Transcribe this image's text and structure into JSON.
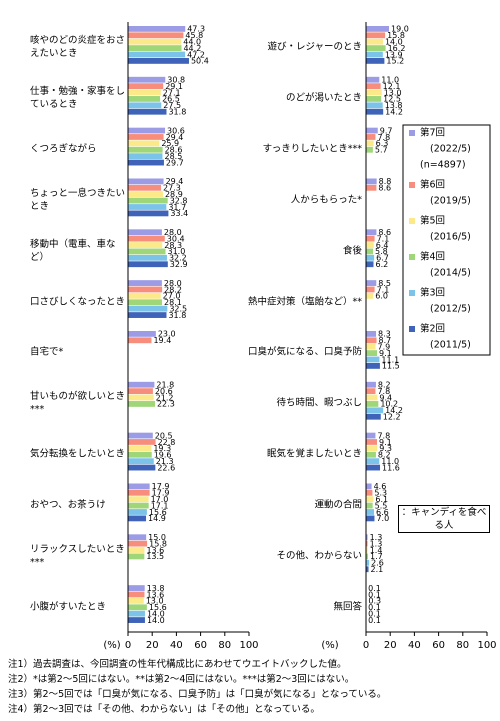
{
  "chart_data": [
    {
      "type": "hbar",
      "x_unit": "(%)",
      "categories": [
        "咳やのどの炎症をおさえたいとき",
        "仕事・勉強・家事をしているとき",
        "くつろぎながら",
        "ちょっと一息つきたいとき",
        "移動中（電車、車など）",
        "口さびしくなったとき",
        "自宅で*",
        "甘いものが欲しいとき***",
        "気分転換をしたいとき",
        "おやつ、お茶うけ",
        "リラックスしたいとき***",
        "小腹がすいたとき"
      ],
      "series": [
        {
          "name": "第7回",
          "color": "#9b9be6",
          "values": [
            47.3,
            30.8,
            30.6,
            29.4,
            28.0,
            28.0,
            23.0,
            21.8,
            20.5,
            17.9,
            15.0,
            13.8
          ],
          "value_labels": [
            "47.3",
            "30.8",
            "30.6",
            "29.4",
            "28.0",
            "28.0",
            "23.0",
            "21.8",
            "20.5",
            "17.9",
            "15.0",
            "13.8"
          ]
        },
        {
          "name": "第6回",
          "color": "#f78d7c",
          "values": [
            45.8,
            29.1,
            29.4,
            27.3,
            30.4,
            28.2,
            19.4,
            20.6,
            22.8,
            17.9,
            15.8,
            13.6
          ],
          "value_labels": [
            "45.8",
            "29.1",
            "29.4",
            "27.3",
            "30.4",
            "28.2",
            "19.4",
            "20.6",
            "22.8",
            "17.9",
            "15.8",
            "13.6"
          ]
        },
        {
          "name": "第5回",
          "color": "#fbe98a",
          "values": [
            44.0,
            27.1,
            25.9,
            28.9,
            28.3,
            27.0,
            null,
            21.2,
            19.3,
            17.0,
            13.6,
            13.0
          ],
          "value_labels": [
            "44.0",
            "27.1",
            "25.9",
            "28.9",
            "28.3",
            "27.0",
            null,
            "21.2",
            "19.3",
            "17.0",
            "13.6",
            "13.0"
          ]
        },
        {
          "name": "第4回",
          "color": "#9fd67a",
          "values": [
            44.2,
            26.5,
            28.6,
            32.8,
            31.0,
            28.1,
            null,
            22.3,
            19.6,
            17.1,
            13.5,
            15.6
          ],
          "value_labels": [
            "44.2",
            "26.5",
            "28.6",
            "32.8",
            "31.0",
            "28.1",
            null,
            "22.3",
            "19.6",
            "17.1",
            "13.5",
            "15.6"
          ]
        },
        {
          "name": "第3回",
          "color": "#7cc3ea",
          "values": [
            47.2,
            27.5,
            28.5,
            31.7,
            32.2,
            32.5,
            null,
            null,
            21.3,
            15.6,
            null,
            14.0
          ],
          "value_labels": [
            "47.2",
            "27.5",
            "28.5",
            "31.7",
            "32.2",
            "32.5",
            null,
            null,
            "21.3",
            "15.6",
            null,
            "14.0"
          ]
        },
        {
          "name": "第2回",
          "color": "#3f63b8",
          "values": [
            50.4,
            31.8,
            29.7,
            33.4,
            32.9,
            31.8,
            null,
            null,
            22.6,
            14.9,
            null,
            14.0
          ],
          "value_labels": [
            "50.4",
            "31.8",
            "29.7",
            "33.4",
            "32.9",
            "31.8",
            null,
            null,
            "22.6",
            "14.9",
            null,
            "14.0"
          ]
        }
      ],
      "xlim": [
        0,
        100
      ],
      "xticks": [
        0,
        20,
        40,
        60,
        80,
        100
      ]
    },
    {
      "type": "hbar",
      "x_unit": "(%)",
      "annotation": "：キャンディを食べる人",
      "legend": "right",
      "categories": [
        "遊び・レジャーのとき",
        "のどが渇いたとき",
        "すっきりしたいとき***",
        "人からもらった*",
        "食後",
        "熱中症対策（塩飴など）**",
        "口臭が気になる、口臭予防",
        "待ち時間、暇つぶし",
        "眠気を覚ましたいとき",
        "運動の合間",
        "その他、わからない",
        "無回答"
      ],
      "series": [
        {
          "name": "第7回",
          "period": "(2022/5)",
          "n": "(n=4897)",
          "color": "#9b9be6",
          "values": [
            19.0,
            11.0,
            9.7,
            8.8,
            8.6,
            8.5,
            8.3,
            8.2,
            7.8,
            4.6,
            1.3,
            0.1
          ],
          "value_labels": [
            "19.0",
            "11.0",
            "9.7",
            "8.8",
            "8.6",
            "8.5",
            "8.3",
            "8.2",
            "7.8",
            "4.6",
            "1.3",
            "0.1"
          ]
        },
        {
          "name": "第6回",
          "period": "(2019/5)",
          "color": "#f78d7c",
          "values": [
            15.8,
            12.1,
            7.8,
            8.6,
            7.1,
            7.1,
            8.7,
            7.8,
            9.1,
            5.3,
            1.3,
            0.1
          ],
          "value_labels": [
            "15.8",
            "12.1",
            "7.8",
            "8.6",
            "7.1",
            "7.1",
            "8.7",
            "7.8",
            "9.1",
            "5.3",
            "1.3",
            "0.1"
          ]
        },
        {
          "name": "第5回",
          "period": "(2016/5)",
          "color": "#fbe98a",
          "values": [
            14.0,
            13.0,
            6.3,
            null,
            6.4,
            6.0,
            7.9,
            9.4,
            9.3,
            6.1,
            1.4,
            0.3
          ],
          "value_labels": [
            "14.0",
            "13.0",
            "6.3",
            null,
            "6.4",
            "6.0",
            "7.9",
            "9.4",
            "9.3",
            "6.1",
            "1.4",
            "0.3"
          ]
        },
        {
          "name": "第4回",
          "period": "(2014/5)",
          "color": "#9fd67a",
          "values": [
            16.2,
            12.5,
            5.7,
            null,
            5.8,
            null,
            9.1,
            10.2,
            8.2,
            5.5,
            1.7,
            0.1
          ],
          "value_labels": [
            "16.2",
            "12.5",
            "5.7",
            null,
            "5.8",
            null,
            "9.1",
            "10.2",
            "8.2",
            "5.5",
            "1.7",
            "0.1"
          ]
        },
        {
          "name": "第3回",
          "period": "(2012/5)",
          "color": "#7cc3ea",
          "values": [
            13.9,
            13.8,
            null,
            null,
            6.7,
            null,
            11.1,
            14.2,
            11.0,
            6.6,
            2.6,
            0.1
          ],
          "value_labels": [
            "13.9",
            "13.8",
            null,
            null,
            "6.7",
            null,
            "11.1",
            "14.2",
            "11.0",
            "6.6",
            "2.6",
            "0.1"
          ]
        },
        {
          "name": "第2回",
          "period": "(2011/5)",
          "color": "#3f63b8",
          "values": [
            15.2,
            14.2,
            null,
            null,
            6.2,
            null,
            11.5,
            12.2,
            11.6,
            7.0,
            2.1,
            0.1
          ],
          "value_labels": [
            "15.2",
            "14.2",
            null,
            null,
            "6.2",
            null,
            "11.5",
            "12.2",
            "11.6",
            "7.0",
            "2.1",
            "0.1"
          ]
        }
      ],
      "xlim": [
        0,
        100
      ],
      "xticks": [
        0,
        20,
        40,
        60,
        80,
        100
      ]
    }
  ],
  "notes": [
    "注1）過去調査は、今回調査の性年代構成比にあわせてウエイトバックした値。",
    "注2）*は第2～5回にはない。**は第2～4回にはない。***は第2～3回にはない。",
    "注3）第2～5回では「口臭が気になる、口臭予防」は「口臭が気になる」となっている。",
    "注4）第2～3回では「その他、わからない」は「その他」となっている。"
  ]
}
